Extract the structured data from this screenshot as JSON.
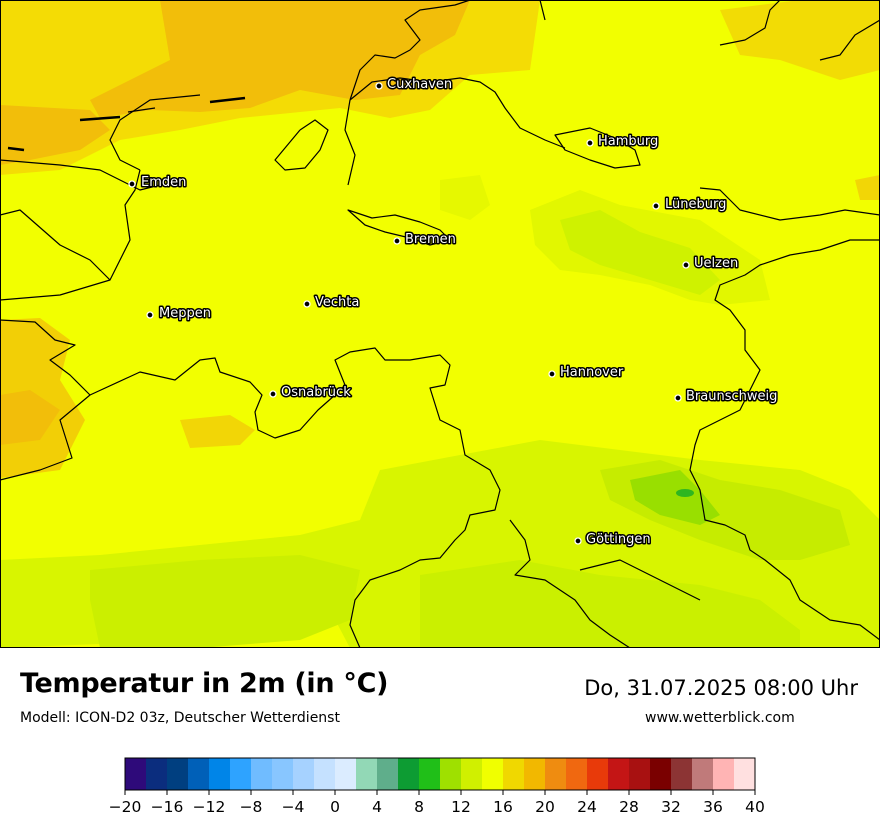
{
  "map": {
    "cities": [
      {
        "name": "Cuxhaven"
      },
      {
        "name": "Hamburg"
      },
      {
        "name": "Emden"
      },
      {
        "name": "Lüneburg"
      },
      {
        "name": "Bremen"
      },
      {
        "name": "Uelzen"
      },
      {
        "name": "Vechta"
      },
      {
        "name": "Meppen"
      },
      {
        "name": "Hannover"
      },
      {
        "name": "Osnabrück"
      },
      {
        "name": "Braunschweig"
      },
      {
        "name": "Göttingen"
      }
    ]
  },
  "header": {
    "title": "Temperatur in 2m (in °C)",
    "subtitle": "Modell: ICON-D2 03z, Deutscher Wetterdienst",
    "datetime": "Do, 31.07.2025 08:00 Uhr",
    "website": "www.wetterblick.com"
  },
  "legend": {
    "tick_labels": [
      "−20",
      "−16",
      "−12",
      "−8",
      "−4",
      "0",
      "4",
      "8",
      "12",
      "16",
      "20",
      "24",
      "28",
      "32",
      "36",
      "40"
    ],
    "colors": [
      "#2e0a7a",
      "#0b2d7e",
      "#003f80",
      "#0060b8",
      "#0085e8",
      "#2ea3ff",
      "#70bcff",
      "#88c6ff",
      "#a6d2ff",
      "#c5e1ff",
      "#dbecff",
      "#92d8b6",
      "#5fae8b",
      "#0d9c33",
      "#20bf18",
      "#9fe000",
      "#d0f000",
      "#f0ff00",
      "#f0d800",
      "#f2b800",
      "#ef8c10",
      "#f06810",
      "#e83a0a",
      "#c41515",
      "#a81111",
      "#7a0000",
      "#8c3434",
      "#c07a7a",
      "#ffb4b4",
      "#ffe0e0"
    ]
  }
}
